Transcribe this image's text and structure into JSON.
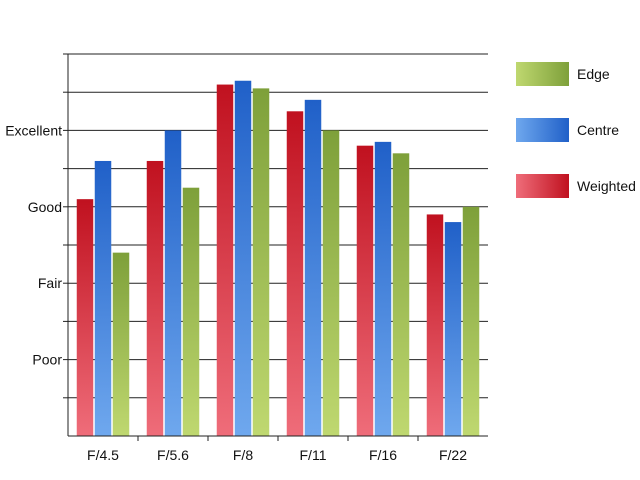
{
  "chart_data": {
    "type": "bar",
    "title": "",
    "xlabel": "",
    "ylabel": "",
    "categories": [
      "F/4.5",
      "F/5.6",
      "F/8",
      "F/11",
      "F/16",
      "F/22"
    ],
    "y_tick_labels": [
      {
        "label": "Poor",
        "value": 2
      },
      {
        "label": "Fair",
        "value": 4
      },
      {
        "label": "Good",
        "value": 6
      },
      {
        "label": "Excellent",
        "value": 8
      }
    ],
    "ylim": [
      0,
      10
    ],
    "grid": true,
    "legend_position": "right",
    "series": [
      {
        "name": "Weighted",
        "color": "#c0111f",
        "values": [
          6.2,
          7.2,
          9.2,
          8.5,
          7.6,
          5.8
        ]
      },
      {
        "name": "Centre",
        "color": "#2060c8",
        "values": [
          7.2,
          8.0,
          9.3,
          8.8,
          7.7,
          5.6
        ]
      },
      {
        "name": "Edge",
        "color": "#7ea03a",
        "values": [
          4.8,
          6.5,
          9.1,
          8.0,
          7.4,
          6.0
        ]
      }
    ],
    "legend_order": [
      "Edge",
      "Centre",
      "Weighted"
    ]
  }
}
